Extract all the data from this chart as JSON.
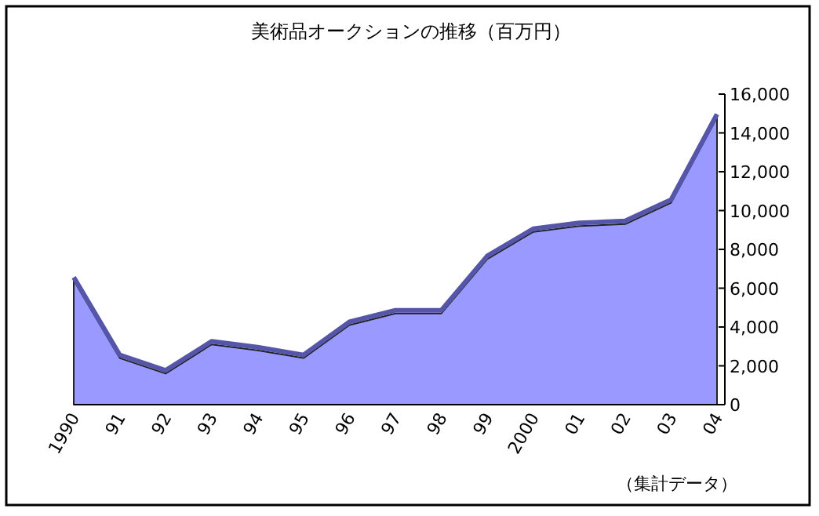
{
  "chart_data": {
    "type": "area",
    "title": "美術品オークションの推移（百万円）",
    "categories": [
      "1990",
      "91",
      "92",
      "93",
      "94",
      "95",
      "96",
      "97",
      "98",
      "99",
      "2000",
      "01",
      "02",
      "03",
      "04"
    ],
    "values": [
      6400,
      2400,
      1600,
      3100,
      2800,
      2400,
      4100,
      4700,
      4700,
      7500,
      8900,
      9200,
      9300,
      10400,
      14800
    ],
    "color": "#9999ff",
    "ylim": [
      0,
      16000
    ],
    "yticks": [
      {
        "value": 0,
        "label": "0"
      },
      {
        "value": 2000,
        "label": "2,000"
      },
      {
        "value": 4000,
        "label": "4,000"
      },
      {
        "value": 6000,
        "label": "6,000"
      },
      {
        "value": 8000,
        "label": "8,000"
      },
      {
        "value": 10000,
        "label": "10,000"
      },
      {
        "value": 12000,
        "label": "12,000"
      },
      {
        "value": 14000,
        "label": "14,000"
      },
      {
        "value": 16000,
        "label": "16,000"
      }
    ],
    "annotations": [
      "（集計データ）"
    ]
  }
}
